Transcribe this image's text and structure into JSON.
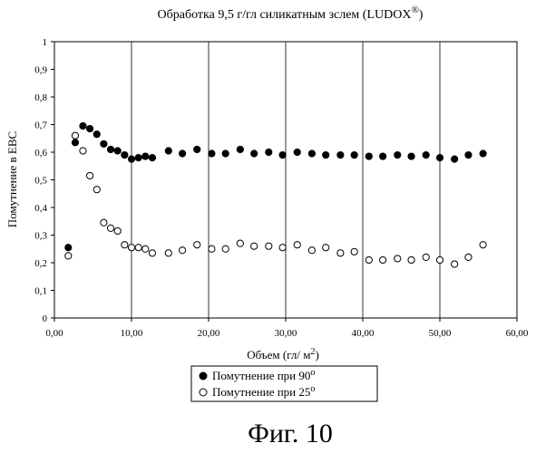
{
  "chart_data": {
    "type": "scatter",
    "title": "Обработка 9,5 г/гл силикатным зслем (LUDOX",
    "title_sup": "®",
    "title_close": ")",
    "xlabel": "Объем (гл/ м",
    "xlabel_sup": "2",
    "xlabel_close": ")",
    "ylabel": "Помутнение в ЕВС",
    "xlim": [
      0,
      60
    ],
    "ylim": [
      0,
      1
    ],
    "x_ticks": [
      "0,00",
      "10,00",
      "20,00",
      "30,00",
      "40,00",
      "50,00",
      "60,00"
    ],
    "y_ticks": [
      "0",
      "0,1",
      "0,2",
      "0,3",
      "0,4",
      "0,5",
      "0,6",
      "0,7",
      "0,8",
      "0,9",
      "1"
    ],
    "grid": true,
    "legend_position": "bottom",
    "series": [
      {
        "name": "Помутнение при 90",
        "name_sup": "o",
        "marker": "filled-circle",
        "x": [
          1.8,
          2.7,
          3.7,
          4.6,
          5.5,
          6.4,
          7.3,
          8.2,
          9.1,
          10.0,
          10.9,
          11.8,
          12.7,
          14.8,
          16.6,
          18.5,
          20.4,
          22.2,
          24.1,
          25.9,
          27.8,
          29.6,
          31.5,
          33.4,
          35.2,
          37.1,
          38.9,
          40.8,
          42.6,
          44.5,
          46.3,
          48.2,
          50.0,
          51.9,
          53.7,
          55.6
        ],
        "y": [
          0.255,
          0.635,
          0.695,
          0.685,
          0.665,
          0.63,
          0.61,
          0.605,
          0.59,
          0.575,
          0.58,
          0.585,
          0.58,
          0.605,
          0.595,
          0.61,
          0.595,
          0.595,
          0.61,
          0.595,
          0.6,
          0.59,
          0.6,
          0.595,
          0.59,
          0.59,
          0.59,
          0.585,
          0.585,
          0.59,
          0.585,
          0.59,
          0.58,
          0.575,
          0.59,
          0.595
        ]
      },
      {
        "name": "Помутнение при 25",
        "name_sup": "o",
        "marker": "open-circle",
        "x": [
          1.8,
          2.7,
          3.7,
          4.6,
          5.5,
          6.4,
          7.3,
          8.2,
          9.1,
          10.0,
          10.9,
          11.8,
          12.7,
          14.8,
          16.6,
          18.5,
          20.4,
          22.2,
          24.1,
          25.9,
          27.8,
          29.6,
          31.5,
          33.4,
          35.2,
          37.1,
          38.9,
          40.8,
          42.6,
          44.5,
          46.3,
          48.2,
          50.0,
          51.9,
          53.7,
          55.6
        ],
        "y": [
          0.225,
          0.66,
          0.605,
          0.515,
          0.465,
          0.345,
          0.325,
          0.315,
          0.265,
          0.255,
          0.255,
          0.25,
          0.235,
          0.235,
          0.245,
          0.265,
          0.25,
          0.25,
          0.27,
          0.26,
          0.26,
          0.255,
          0.265,
          0.245,
          0.255,
          0.235,
          0.24,
          0.21,
          0.21,
          0.215,
          0.21,
          0.22,
          0.21,
          0.195,
          0.22,
          0.265
        ]
      }
    ]
  },
  "caption": "Фиг. 10"
}
